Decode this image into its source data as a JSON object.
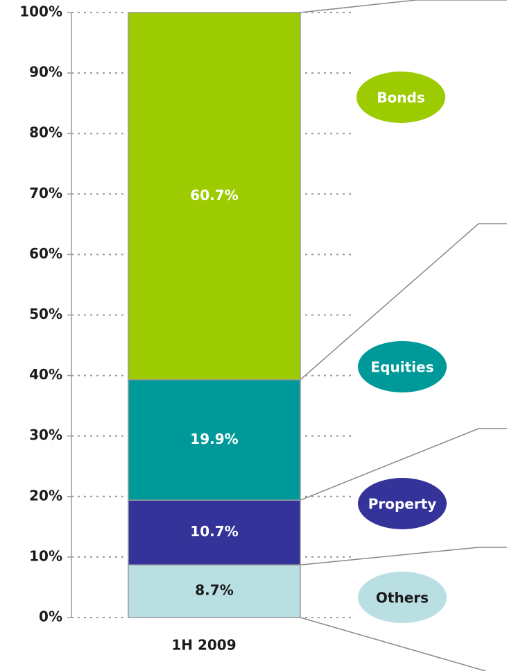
{
  "chart_data": {
    "type": "stacked_bar",
    "categories": [
      "1H 2009"
    ],
    "series": [
      {
        "name": "Others",
        "color": "#b9dfe3",
        "text_color": "#1a1a1a",
        "values": [
          8.7
        ],
        "value_labels": [
          "8.7%"
        ]
      },
      {
        "name": "Property",
        "color": "#333399",
        "text_color": "#ffffff",
        "values": [
          10.7
        ],
        "value_labels": [
          "10.7%"
        ]
      },
      {
        "name": "Equities",
        "color": "#009999",
        "text_color": "#ffffff",
        "values": [
          19.9
        ],
        "value_labels": [
          "19.9%"
        ]
      },
      {
        "name": "Bonds",
        "color": "#9bcb00",
        "text_color": "#ffffff",
        "values": [
          60.7
        ],
        "value_labels": [
          "60.7%"
        ]
      }
    ],
    "ylim": [
      0,
      100
    ],
    "yticks": [
      {
        "value": 0,
        "label": "0%"
      },
      {
        "value": 10,
        "label": "10%"
      },
      {
        "value": 20,
        "label": "20%"
      },
      {
        "value": 30,
        "label": "30%"
      },
      {
        "value": 40,
        "label": "40%"
      },
      {
        "value": 50,
        "label": "50%"
      },
      {
        "value": 60,
        "label": "60%"
      },
      {
        "value": 70,
        "label": "70%"
      },
      {
        "value": 80,
        "label": "80%"
      },
      {
        "value": 90,
        "label": "90%"
      },
      {
        "value": 100,
        "label": "100%"
      }
    ],
    "grid": true
  }
}
